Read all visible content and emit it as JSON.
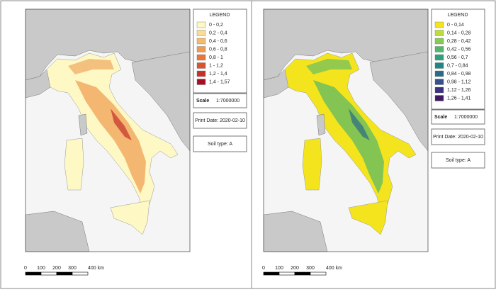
{
  "panels": [
    {
      "legend": {
        "title": "LEGEND",
        "items": [
          {
            "label": "0 - 0,2",
            "color": "#fdf8c4"
          },
          {
            "label": "0,2 - 0,4",
            "color": "#f9dd96"
          },
          {
            "label": "0,4 - 0,6",
            "color": "#f4bb6c"
          },
          {
            "label": "0,6 - 0,8",
            "color": "#ef9b50"
          },
          {
            "label": "0,8 - 1",
            "color": "#e8763c"
          },
          {
            "label": "1 - 1,2",
            "color": "#da5230"
          },
          {
            "label": "1,2 - 1,4",
            "color": "#c3312a"
          },
          {
            "label": "1,4 - 1,57",
            "color": "#a50f26"
          }
        ]
      },
      "scale": {
        "label": "Scale",
        "value": "1:7000000"
      },
      "print_date": "Print Date: 2020-02-10",
      "soil_type": "Soil type: A",
      "scale_bar": [
        "0",
        "100",
        "200",
        "300",
        "400 km"
      ]
    },
    {
      "legend": {
        "title": "LEGEND",
        "items": [
          {
            "label": "0 - 0,14",
            "color": "#f4e41e"
          },
          {
            "label": "0,14 - 0,28",
            "color": "#c1dc3a"
          },
          {
            "label": "0,28 - 0,42",
            "color": "#86cb55"
          },
          {
            "label": "0,42 - 0,56",
            "color": "#52b76a"
          },
          {
            "label": "0,56 - 0,7",
            "color": "#2ea17a"
          },
          {
            "label": "0,7 - 0,84",
            "color": "#218682"
          },
          {
            "label": "0,84 - 0,98",
            "color": "#2a6b88"
          },
          {
            "label": "0,98 - 1,12",
            "color": "#35508a"
          },
          {
            "label": "1,12 - 1,26",
            "color": "#3b3380"
          },
          {
            "label": "1,26 - 1,41",
            "color": "#3e1a62"
          }
        ]
      },
      "scale": {
        "label": "Scale",
        "value": "1:7000000"
      },
      "print_date": "Print Date: 2020-02-10",
      "soil_type": "Soil type: A",
      "scale_bar": [
        "0",
        "100",
        "200",
        "300",
        "400 km"
      ]
    }
  ]
}
